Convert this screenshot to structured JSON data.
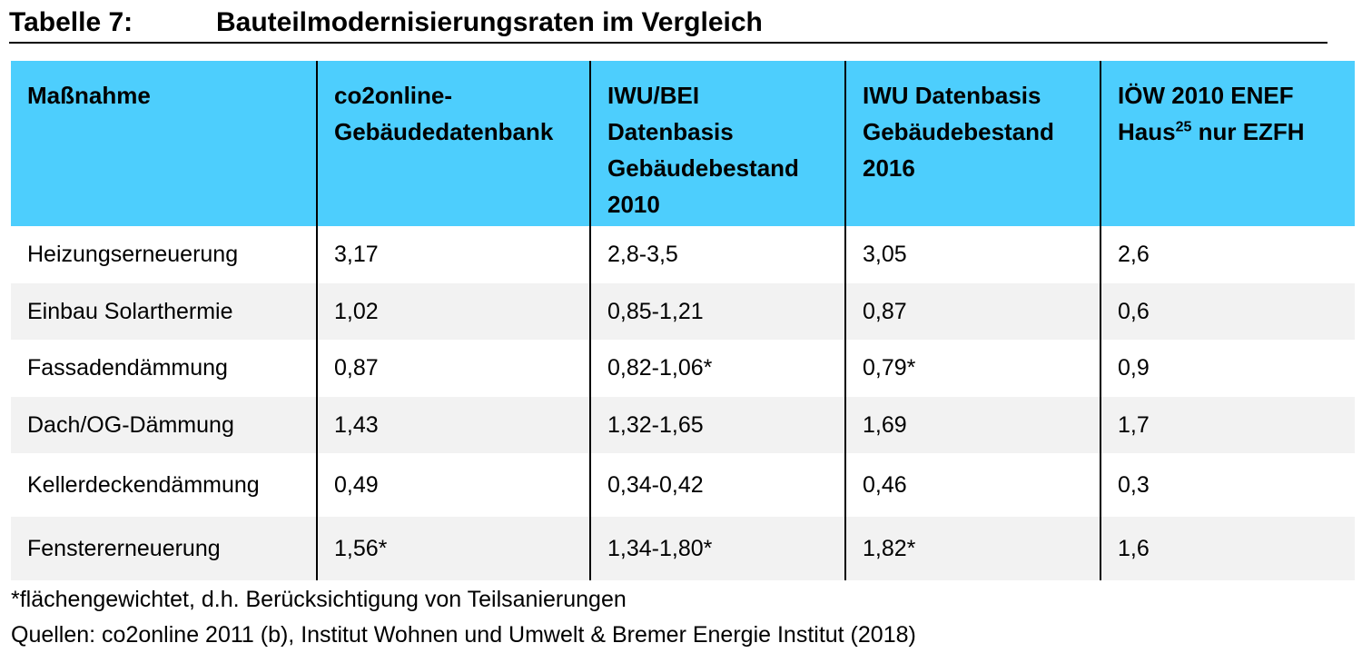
{
  "title": {
    "label": "Tabelle 7:",
    "text": "Bauteilmodernisierungsraten im Vergleich"
  },
  "table": {
    "headers": [
      {
        "lines": [
          "Maßnahme"
        ]
      },
      {
        "lines": [
          "co2online-",
          "Gebäudedatenbank"
        ]
      },
      {
        "lines": [
          "IWU/BEI",
          "Datenbasis",
          "Gebäudebestand",
          "2010"
        ]
      },
      {
        "lines": [
          "IWU Datenbasis",
          "Gebäudebestand",
          "2016"
        ]
      },
      {
        "lines": [
          "IÖW 2010 ENEF",
          "Haus"
        ],
        "sup": "25",
        "after_sup": " nur EZFH"
      }
    ],
    "rows": [
      [
        "Heizungserneuerung",
        "3,17",
        "2,8-3,5",
        "3,05",
        "2,6"
      ],
      [
        "Einbau Solarthermie",
        "1,02",
        "0,85-1,21",
        "0,87",
        "0,6"
      ],
      [
        "Fassadendämmung",
        "0,87",
        "0,82-1,06*",
        "0,79*",
        "0,9"
      ],
      [
        "Dach/OG-Dämmung",
        "1,43",
        "1,32-1,65",
        "1,69",
        "1,7"
      ],
      [
        "Kellerdeckendämmung",
        "0,49",
        "0,34-0,42",
        "0,46",
        "0,3"
      ],
      [
        "Fenstererneuerung",
        "1,56*",
        "1,34-1,80*",
        "1,82*",
        "1,6"
      ]
    ]
  },
  "footnotes": {
    "asterisk": "*flächengewichtet, d.h. Berücksichtigung von Teilsanierungen",
    "sources": "Quellen: co2online 2011 (b), Institut Wohnen und Umwelt & Bremer Energie Institut (2018)"
  }
}
